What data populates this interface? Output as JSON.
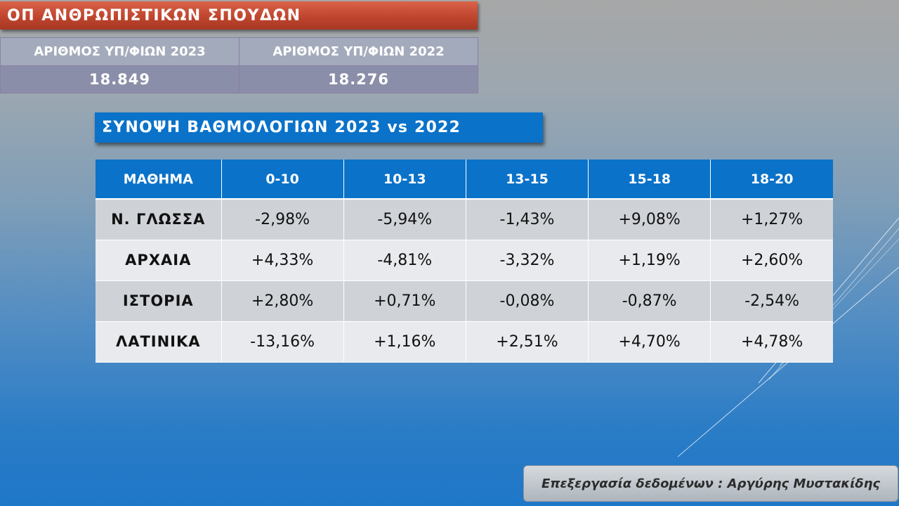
{
  "title": "ΟΠ ΑΝΘΡΩΠΙΣΤΙΚΩΝ ΣΠΟΥΔΩΝ",
  "counts": {
    "headers": [
      "ΑΡΙΘΜΟΣ ΥΠ/ΦΙΩΝ 2023",
      "ΑΡΙΘΜΟΣ ΥΠ/ΦΙΩΝ 2022"
    ],
    "values": [
      "18.849",
      "18.276"
    ]
  },
  "section_title": "ΣΥΝΟΨΗ ΒΑΘΜΟΛΟΓΙΩΝ 2023 vs 2022",
  "table": {
    "headers": [
      "ΜΑΘΗΜΑ",
      "0-10",
      "10-13",
      "13-15",
      "15-18",
      "18-20"
    ],
    "rows": [
      [
        "Ν. ΓΛΩΣΣΑ",
        "-2,98%",
        "-5,94%",
        "-1,43%",
        "+9,08%",
        "+1,27%"
      ],
      [
        "ΑΡΧΑΙΑ",
        "+4,33%",
        "-4,81%",
        "-3,32%",
        "+1,19%",
        "+2,60%"
      ],
      [
        "ΙΣΤΟΡΙΑ",
        "+2,80%",
        "+0,71%",
        "-0,08%",
        "-0,87%",
        "-2,54%"
      ],
      [
        "ΛΑΤΙΝΙΚΑ",
        "-13,16%",
        "+1,16%",
        "+2,51%",
        "+4,70%",
        "+4,78%"
      ]
    ]
  },
  "credit": "Επεξεργασία δεδομένων : Αργύρης Μυστακίδης",
  "colors": {
    "title_banner": "#c0452e",
    "header_blue": "#0a72c9",
    "row_dark": "#cfd3d8",
    "row_light": "#e8eaed"
  }
}
